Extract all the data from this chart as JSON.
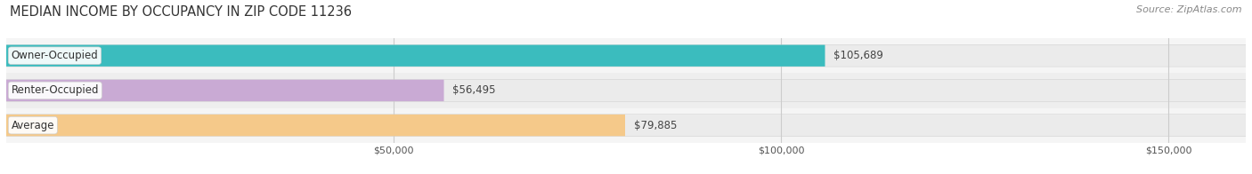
{
  "title": "MEDIAN INCOME BY OCCUPANCY IN ZIP CODE 11236",
  "source": "Source: ZipAtlas.com",
  "categories": [
    "Owner-Occupied",
    "Renter-Occupied",
    "Average"
  ],
  "values": [
    105689,
    56495,
    79885
  ],
  "labels": [
    "$105,689",
    "$56,495",
    "$79,885"
  ],
  "bar_colors": [
    "#3bbcbe",
    "#c9aad4",
    "#f5c98a"
  ],
  "background_color": "#ffffff",
  "track_color": "#ebebeb",
  "track_border_color": "#d0d0d0",
  "row_bg_colors": [
    "#f5f5f5",
    "#eeeeee",
    "#f5f5f5"
  ],
  "xlim_max": 160000,
  "xticks": [
    50000,
    100000,
    150000
  ],
  "xticklabels": [
    "$50,000",
    "$100,000",
    "$150,000"
  ],
  "title_fontsize": 10.5,
  "source_fontsize": 8,
  "label_fontsize": 8.5,
  "cat_fontsize": 8.5,
  "tick_fontsize": 8,
  "bar_height": 0.62,
  "vgrid_color": "#cccccc"
}
